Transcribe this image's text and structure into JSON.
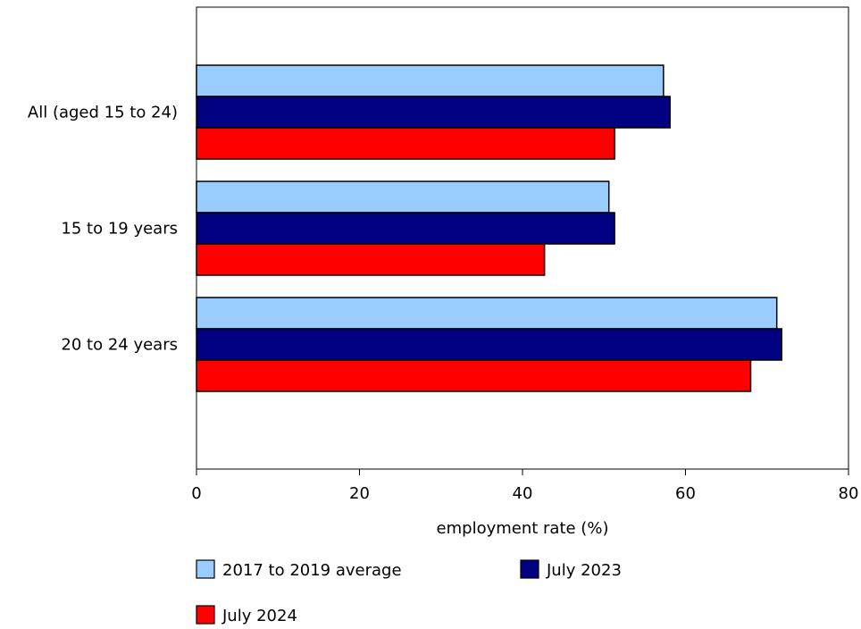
{
  "chart_data": {
    "type": "bar",
    "orientation": "horizontal",
    "categories": [
      "All (aged 15 to 24)",
      "15 to 19 years",
      "20 to 24 years"
    ],
    "series": [
      {
        "name": "2017 to 2019 average",
        "color": "#99ccff",
        "values": [
          57.3,
          50.6,
          71.2
        ]
      },
      {
        "name": "July 2023",
        "color": "#000080",
        "values": [
          58.1,
          51.3,
          71.8
        ]
      },
      {
        "name": "July 2024",
        "color": "#ff0000",
        "values": [
          51.3,
          42.7,
          68.0
        ]
      }
    ],
    "xlabel": "employment rate (%)",
    "xlim": [
      0,
      80
    ],
    "xticks": [
      "0",
      "20",
      "40",
      "60",
      "80"
    ],
    "grid": false,
    "legend_position": "bottom"
  }
}
